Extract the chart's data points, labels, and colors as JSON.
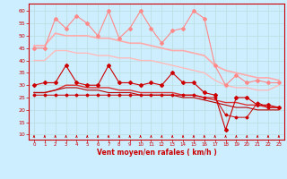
{
  "xlabel": "Vent moyen/en rafales ( km/h )",
  "xlim": [
    -0.5,
    23.5
  ],
  "ylim": [
    8,
    63
  ],
  "yticks": [
    10,
    15,
    20,
    25,
    30,
    35,
    40,
    45,
    50,
    55,
    60
  ],
  "xticks": [
    0,
    1,
    2,
    3,
    4,
    5,
    6,
    7,
    8,
    9,
    10,
    11,
    12,
    13,
    14,
    15,
    16,
    17,
    18,
    19,
    20,
    21,
    22,
    23
  ],
  "bg_color": "#cceeff",
  "grid_color": "#bbdddd",
  "series": [
    {
      "name": "rafales_max",
      "color": "#ff8888",
      "linewidth": 0.8,
      "marker": "D",
      "markersize": 2.0,
      "data": [
        45,
        45,
        57,
        53,
        58,
        55,
        50,
        60,
        49,
        53,
        60,
        53,
        47,
        52,
        53,
        60,
        57,
        38,
        30,
        34,
        31,
        32,
        31,
        31
      ]
    },
    {
      "name": "rafales_trend_high",
      "color": "#ffaaaa",
      "linewidth": 1.2,
      "marker": null,
      "markersize": 0,
      "data": [
        46,
        46,
        51,
        50,
        50,
        50,
        49,
        49,
        48,
        47,
        47,
        46,
        45,
        44,
        44,
        43,
        42,
        38,
        36,
        35,
        34,
        33,
        33,
        32
      ]
    },
    {
      "name": "rafales_trend_low",
      "color": "#ffbbbb",
      "linewidth": 1.0,
      "marker": null,
      "markersize": 0,
      "data": [
        40,
        40,
        44,
        44,
        43,
        43,
        42,
        42,
        41,
        41,
        40,
        40,
        39,
        38,
        37,
        36,
        35,
        32,
        30,
        29,
        29,
        28,
        28,
        30
      ]
    },
    {
      "name": "vent_max",
      "color": "#cc0000",
      "linewidth": 0.8,
      "marker": "D",
      "markersize": 2.0,
      "data": [
        30,
        31,
        31,
        38,
        31,
        30,
        30,
        38,
        31,
        31,
        30,
        31,
        30,
        35,
        31,
        31,
        27,
        26,
        12,
        25,
        25,
        22,
        22,
        21
      ]
    },
    {
      "name": "vent_trend_high",
      "color": "#dd3333",
      "linewidth": 1.0,
      "marker": null,
      "markersize": 0,
      "data": [
        27,
        27,
        28,
        30,
        30,
        29,
        29,
        29,
        28,
        28,
        27,
        27,
        27,
        27,
        26,
        26,
        25,
        24,
        23,
        23,
        22,
        22,
        21,
        21
      ]
    },
    {
      "name": "vent_trend_low",
      "color": "#bb0000",
      "linewidth": 0.8,
      "marker": null,
      "markersize": 0,
      "data": [
        27,
        27,
        28,
        29,
        29,
        28,
        28,
        27,
        27,
        27,
        26,
        26,
        26,
        26,
        25,
        25,
        24,
        23,
        22,
        21,
        21,
        20,
        20,
        20
      ]
    },
    {
      "name": "vent_moyen",
      "color": "#cc0000",
      "linewidth": 0.7,
      "marker": "D",
      "markersize": 1.5,
      "data": [
        26,
        26,
        26,
        26,
        26,
        26,
        26,
        26,
        26,
        26,
        26,
        26,
        26,
        26,
        26,
        26,
        25,
        25,
        18,
        17,
        17,
        23,
        21,
        21
      ]
    }
  ]
}
